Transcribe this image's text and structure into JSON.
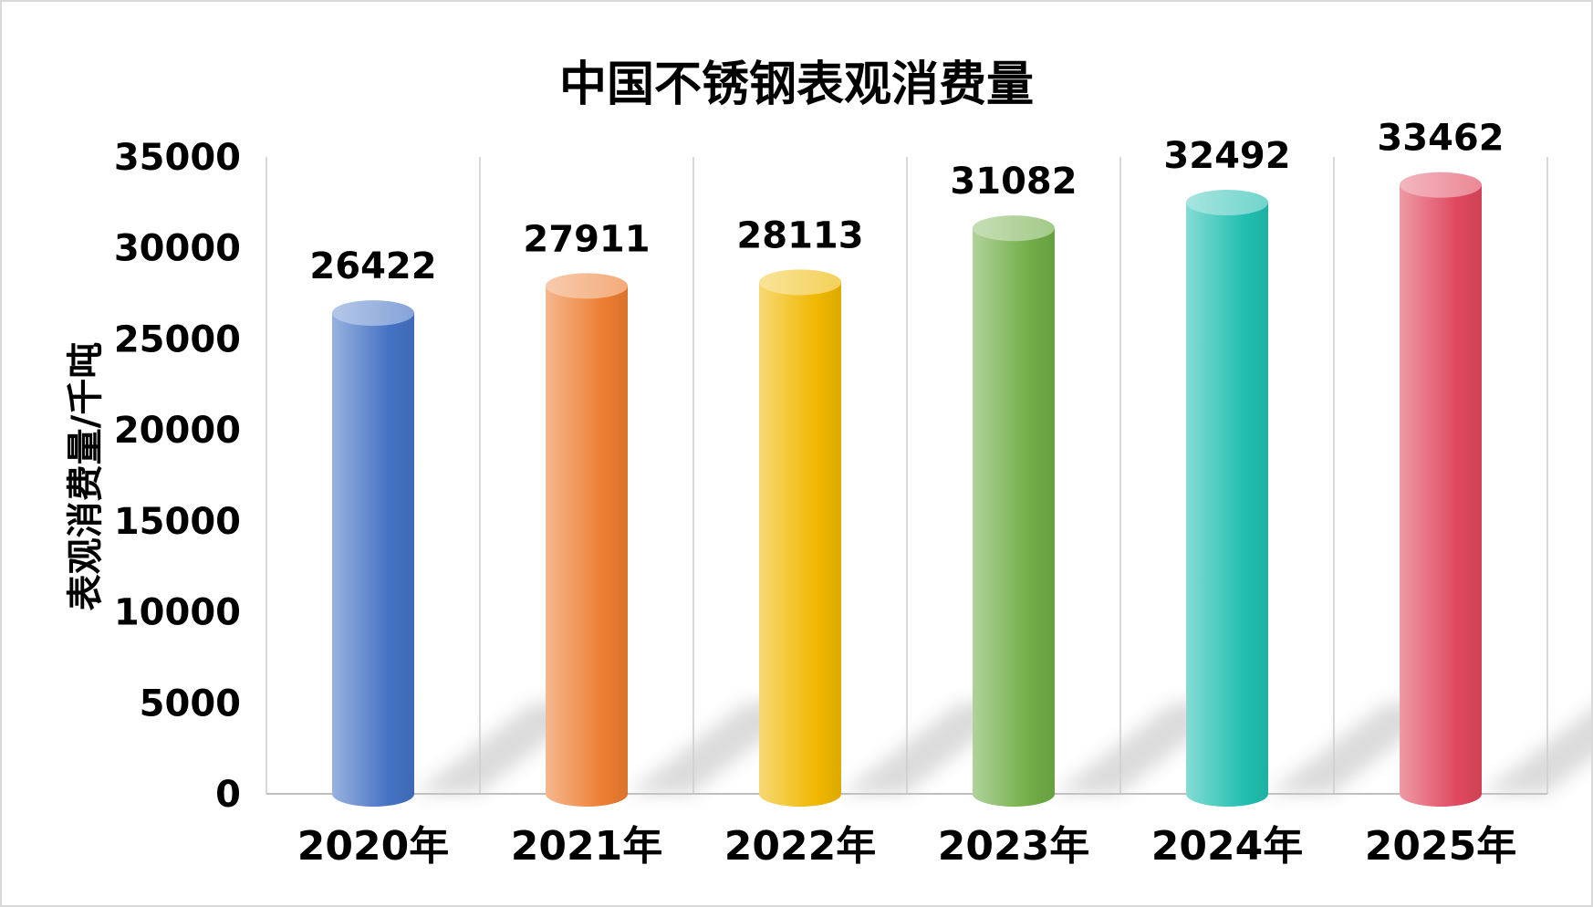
{
  "chart_data": {
    "type": "bar",
    "title": "中国不锈钢表观消费量",
    "xlabel": "",
    "ylabel": "表观消费量/千吨",
    "categories": [
      "2020年",
      "2021年",
      "2022年",
      "2023年",
      "2024年",
      "2025年"
    ],
    "values": [
      26422,
      27911,
      28113,
      31082,
      32492,
      33462
    ],
    "ylim": [
      0,
      35000
    ],
    "yticks": [
      "0",
      "5000",
      "10000",
      "15000",
      "20000",
      "25000",
      "30000",
      "35000"
    ],
    "grid": "vertical category separators",
    "legend": "none",
    "colors": [
      "#4472c4",
      "#ed7d31",
      "#f0b800",
      "#70ad47",
      "#21bfb0",
      "#e0485e"
    ]
  }
}
